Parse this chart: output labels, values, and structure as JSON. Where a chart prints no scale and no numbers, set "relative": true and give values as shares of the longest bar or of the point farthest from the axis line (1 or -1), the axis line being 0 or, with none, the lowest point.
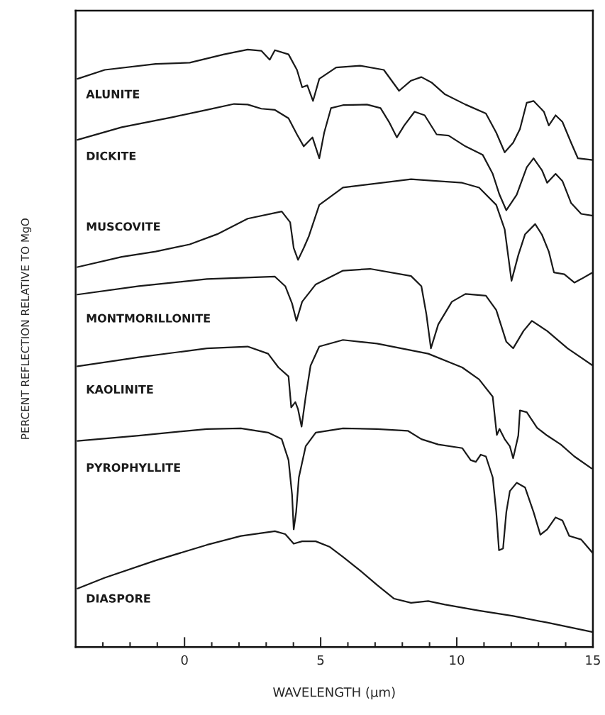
{
  "chart_data": {
    "type": "line",
    "relative": true,
    "xlabel": "WAVELENGTH (μm)",
    "ylabel": "PERCENT REFLECTION RELATIVE TO MgO",
    "xlim": [
      -4,
      15
    ],
    "xticks": [
      {
        "value": -3,
        "label": null
      },
      {
        "value": -2,
        "label": null
      },
      {
        "value": -1,
        "label": null
      },
      {
        "value": 0,
        "label": "0"
      },
      {
        "value": 1,
        "label": null
      },
      {
        "value": 2,
        "label": null
      },
      {
        "value": 3,
        "label": null
      },
      {
        "value": 4,
        "label": null
      },
      {
        "value": 5,
        "label": "5"
      },
      {
        "value": 6,
        "label": null
      },
      {
        "value": 7,
        "label": null
      },
      {
        "value": 8,
        "label": null
      },
      {
        "value": 9,
        "label": null
      },
      {
        "value": 10,
        "label": "10"
      },
      {
        "value": 11,
        "label": null
      },
      {
        "value": 12,
        "label": null
      },
      {
        "value": 13,
        "label": null
      },
      {
        "value": 14,
        "label": null
      },
      {
        "value": 15,
        "label": "15"
      }
    ],
    "tick_labels": "x",
    "grid": false,
    "legend": false,
    "marker": "none",
    "line_style": "solid",
    "series": [
      {
        "name": "ALUNITE",
        "color": "#1a1a1a",
        "x": [
          -3.93,
          -2.93,
          -1.06,
          0.19,
          1.45,
          2.32,
          2.82,
          3.13,
          3.32,
          3.82,
          4.13,
          4.32,
          4.51,
          4.72,
          4.95,
          5.57,
          6.45,
          7.32,
          7.88,
          8.32,
          8.7,
          9.07,
          9.57,
          10.32,
          11.07,
          11.45,
          11.76,
          12.07,
          12.32,
          12.57,
          12.82,
          13.2,
          13.38,
          13.63,
          13.88,
          14.2,
          14.45,
          15.0
        ],
        "values": [
          0.951,
          0.966,
          0.976,
          0.978,
          0.992,
          1.0,
          0.998,
          0.983,
          0.999,
          0.992,
          0.966,
          0.937,
          0.94,
          0.914,
          0.951,
          0.97,
          0.973,
          0.966,
          0.931,
          0.948,
          0.954,
          0.945,
          0.925,
          0.908,
          0.893,
          0.861,
          0.828,
          0.844,
          0.867,
          0.911,
          0.914,
          0.896,
          0.873,
          0.89,
          0.879,
          0.844,
          0.818,
          0.815
        ]
      },
      {
        "name": "DICKITE",
        "color": "#1a1a1a",
        "x": [
          -3.93,
          -2.31,
          -0.43,
          0.82,
          1.82,
          2.32,
          2.82,
          3.32,
          3.82,
          4.13,
          4.38,
          4.7,
          4.95,
          5.13,
          5.38,
          5.82,
          6.7,
          7.2,
          7.51,
          7.8,
          8.07,
          8.45,
          8.82,
          9.26,
          9.7,
          10.32,
          10.95,
          11.32,
          11.57,
          11.82,
          12.2,
          12.57,
          12.82,
          13.13,
          13.32,
          13.63,
          13.88,
          14.2,
          14.57,
          15.0
        ],
        "values": [
          0.849,
          0.87,
          0.887,
          0.899,
          0.909,
          0.908,
          0.901,
          0.899,
          0.885,
          0.858,
          0.838,
          0.853,
          0.818,
          0.861,
          0.902,
          0.907,
          0.908,
          0.902,
          0.879,
          0.853,
          0.873,
          0.896,
          0.89,
          0.858,
          0.856,
          0.838,
          0.824,
          0.792,
          0.757,
          0.731,
          0.757,
          0.803,
          0.818,
          0.798,
          0.777,
          0.792,
          0.78,
          0.743,
          0.725,
          0.722
        ]
      },
      {
        "name": "MUSCOVITE",
        "color": "#1a1a1a",
        "x": [
          -3.93,
          -2.31,
          -1.06,
          0.19,
          1.2,
          2.32,
          3.57,
          3.88,
          4.01,
          4.17,
          4.38,
          4.57,
          4.95,
          5.82,
          8.32,
          10.2,
          10.82,
          11.45,
          11.76,
          12.01,
          12.26,
          12.51,
          12.88,
          13.13,
          13.38,
          13.57,
          13.95,
          14.32,
          14.57,
          14.95
        ],
        "values": [
          0.636,
          0.653,
          0.662,
          0.674,
          0.691,
          0.717,
          0.729,
          0.711,
          0.668,
          0.648,
          0.668,
          0.688,
          0.74,
          0.769,
          0.783,
          0.777,
          0.769,
          0.74,
          0.699,
          0.613,
          0.656,
          0.691,
          0.708,
          0.69,
          0.662,
          0.627,
          0.624,
          0.61,
          0.616,
          0.626
        ]
      },
      {
        "name": "MONTMORILLONITE",
        "color": "#1a1a1a",
        "x": [
          -3.93,
          -1.68,
          0.82,
          3.32,
          3.7,
          3.95,
          4.11,
          4.32,
          4.82,
          5.82,
          6.82,
          8.32,
          8.7,
          8.88,
          9.05,
          9.32,
          9.82,
          10.32,
          11.07,
          11.45,
          11.82,
          12.07,
          12.45,
          12.76,
          13.32,
          14.07,
          15.0
        ],
        "values": [
          0.59,
          0.604,
          0.616,
          0.62,
          0.604,
          0.575,
          0.546,
          0.578,
          0.607,
          0.63,
          0.633,
          0.621,
          0.604,
          0.558,
          0.5,
          0.54,
          0.578,
          0.591,
          0.588,
          0.564,
          0.511,
          0.5,
          0.529,
          0.546,
          0.529,
          0.5,
          0.471
        ]
      },
      {
        "name": "KAOLINITE",
        "color": "#1a1a1a",
        "x": [
          -3.93,
          -1.68,
          0.82,
          2.32,
          3.07,
          3.45,
          3.82,
          3.92,
          4.07,
          4.17,
          4.3,
          4.45,
          4.63,
          4.95,
          5.82,
          7.07,
          8.95,
          10.2,
          10.82,
          11.32,
          11.47,
          11.57,
          11.76,
          11.95,
          12.07,
          12.26,
          12.32,
          12.57,
          12.95,
          13.32,
          13.82,
          14.32,
          14.95
        ],
        "values": [
          0.47,
          0.485,
          0.5,
          0.503,
          0.491,
          0.468,
          0.453,
          0.401,
          0.41,
          0.398,
          0.369,
          0.419,
          0.471,
          0.503,
          0.514,
          0.508,
          0.491,
          0.468,
          0.448,
          0.419,
          0.355,
          0.365,
          0.348,
          0.336,
          0.316,
          0.354,
          0.396,
          0.393,
          0.367,
          0.354,
          0.339,
          0.319,
          0.299
        ]
      },
      {
        "name": "PYROPHYLLITE",
        "color": "#1a1a1a",
        "x": [
          -3.93,
          -1.68,
          0.82,
          2.07,
          3.07,
          3.57,
          3.82,
          3.95,
          4.01,
          4.1,
          4.2,
          4.45,
          4.82,
          5.82,
          7.07,
          8.2,
          8.7,
          9.32,
          10.2,
          10.51,
          10.7,
          10.88,
          11.07,
          11.32,
          11.45,
          11.55,
          11.7,
          11.82,
          11.95,
          12.2,
          12.51,
          12.82,
          13.07,
          13.32,
          13.63,
          13.88,
          14.13,
          14.57,
          15.0
        ],
        "values": [
          0.345,
          0.354,
          0.365,
          0.366,
          0.359,
          0.348,
          0.313,
          0.255,
          0.197,
          0.226,
          0.284,
          0.336,
          0.359,
          0.366,
          0.365,
          0.362,
          0.348,
          0.339,
          0.333,
          0.313,
          0.31,
          0.322,
          0.319,
          0.284,
          0.226,
          0.162,
          0.165,
          0.226,
          0.261,
          0.275,
          0.267,
          0.226,
          0.188,
          0.197,
          0.217,
          0.212,
          0.186,
          0.18,
          0.157
        ]
      },
      {
        "name": "DIASPORE",
        "color": "#1a1a1a",
        "x": [
          -3.93,
          -2.93,
          -1.06,
          0.82,
          2.07,
          3.32,
          3.7,
          4.01,
          4.32,
          4.82,
          5.32,
          5.82,
          6.45,
          7.07,
          7.7,
          8.32,
          8.95,
          9.57,
          10.82,
          12.07,
          13.32,
          15.0
        ],
        "values": [
          0.098,
          0.116,
          0.145,
          0.171,
          0.186,
          0.194,
          0.189,
          0.173,
          0.177,
          0.177,
          0.168,
          0.151,
          0.128,
          0.104,
          0.081,
          0.074,
          0.077,
          0.071,
          0.061,
          0.052,
          0.041,
          0.025
        ]
      }
    ]
  }
}
